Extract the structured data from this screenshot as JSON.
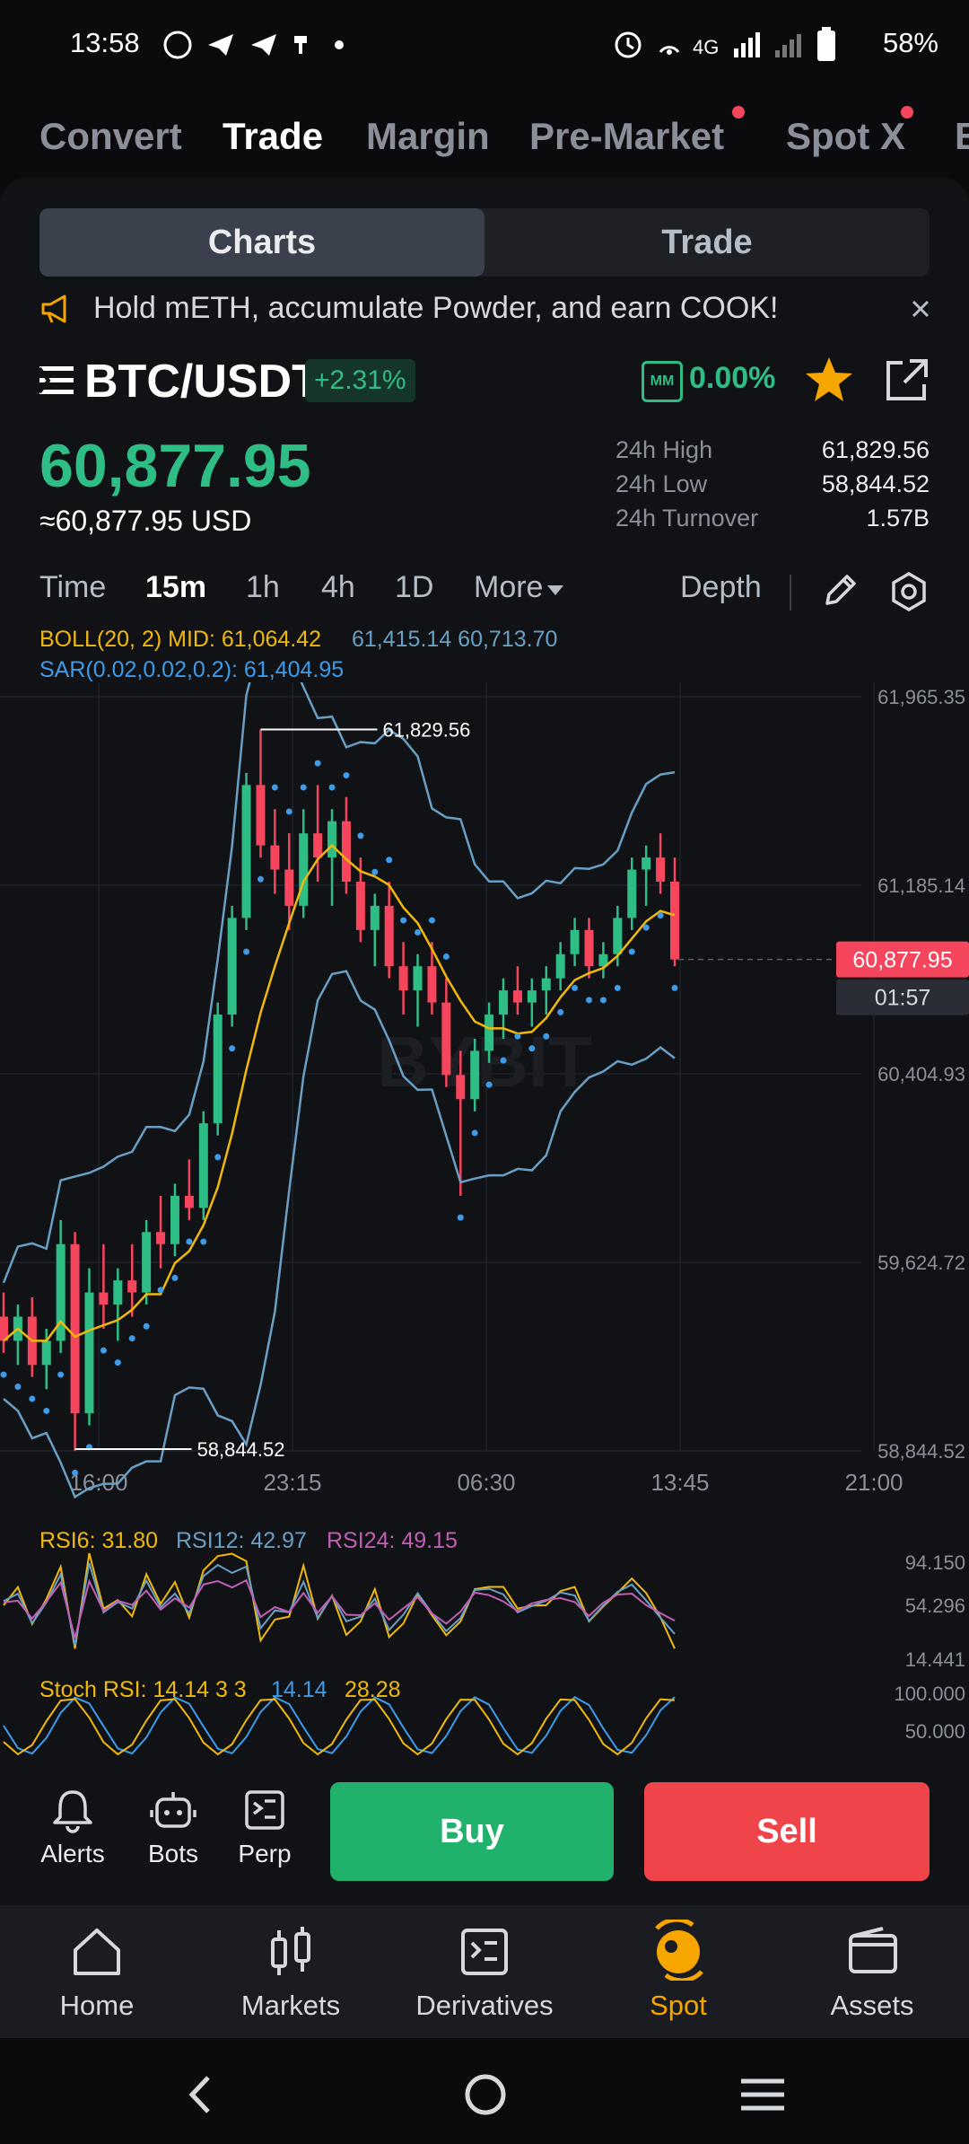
{
  "status_bar": {
    "time": "13:58",
    "network": "4G",
    "battery": "58%"
  },
  "top_tabs": [
    {
      "label": "Convert",
      "active": false
    },
    {
      "label": "Trade",
      "active": true
    },
    {
      "label": "Margin",
      "active": false
    },
    {
      "label": "Pre-Market",
      "active": false,
      "dot": true
    },
    {
      "label": "Spot X",
      "active": false,
      "dot": true
    },
    {
      "label": "B",
      "active": false
    }
  ],
  "segment": {
    "charts": "Charts",
    "trade": "Trade"
  },
  "promo": {
    "text": "Hold mETH, accumulate Powder, and earn COOK!"
  },
  "pair": {
    "symbol": "BTC/USDT",
    "change": "+2.31%",
    "mm_label": "MM",
    "mm_value": "0.00%"
  },
  "price": {
    "last": "60,877.95",
    "usd": "≈60,877.95 USD"
  },
  "stats": [
    {
      "label": "24h High",
      "value": "61,829.56"
    },
    {
      "label": "24h Low",
      "value": "58,844.52"
    },
    {
      "label": "24h Turnover",
      "value": "1.57B"
    }
  ],
  "timeframes": [
    {
      "label": "Time",
      "active": false
    },
    {
      "label": "15m",
      "active": true
    },
    {
      "label": "1h",
      "active": false
    },
    {
      "label": "4h",
      "active": false
    },
    {
      "label": "1D",
      "active": false
    },
    {
      "label": "More",
      "active": false
    }
  ],
  "depth_label": "Depth",
  "indicators": {
    "boll": "BOLL(20, 2) MID: 61,064.42",
    "boll_bands": "61,415.14 60,713.70",
    "sar": "SAR(0.02,0.02,0.2): 61,404.95",
    "rsi6": "RSI6: 31.80",
    "rsi12": "RSI12: 42.97",
    "rsi24": "RSI24: 49.15",
    "stoch_label": "Stoch RSI: 14.14 3 3",
    "stoch_k": "14.14",
    "stoch_d": "28.28"
  },
  "chart_data": {
    "type": "candlestick",
    "y_ticks": [
      "61,965.35",
      "61,185.14",
      "60,404.93",
      "59,624.72",
      "58,844.52"
    ],
    "x_ticks": [
      "16:00",
      "23:15",
      "06:30",
      "13:45",
      "21:00"
    ],
    "high_marker": "61,829.56",
    "low_marker": "58,844.52",
    "last_price_tag": "60,877.95",
    "countdown": "01:57",
    "watermark": "BYBIT",
    "rsi_ticks": [
      "94.150",
      "54.296",
      "14.441"
    ],
    "stoch_ticks": [
      "100.000",
      "50.000"
    ],
    "candles": [
      [
        59400,
        59500,
        59250,
        59300
      ],
      [
        59300,
        59450,
        59200,
        59400
      ],
      [
        59400,
        59480,
        59150,
        59200
      ],
      [
        59200,
        59350,
        59100,
        59300
      ],
      [
        59300,
        59800,
        59250,
        59700
      ],
      [
        59700,
        59750,
        58844,
        59000
      ],
      [
        59000,
        59600,
        58950,
        59500
      ],
      [
        59500,
        59700,
        59350,
        59450
      ],
      [
        59450,
        59600,
        59300,
        59550
      ],
      [
        59550,
        59700,
        59400,
        59500
      ],
      [
        59500,
        59800,
        59450,
        59750
      ],
      [
        59750,
        59900,
        59600,
        59700
      ],
      [
        59700,
        59950,
        59650,
        59900
      ],
      [
        59900,
        60050,
        59800,
        59850
      ],
      [
        59850,
        60250,
        59800,
        60200
      ],
      [
        60200,
        60700,
        60150,
        60650
      ],
      [
        60650,
        61100,
        60600,
        61050
      ],
      [
        61050,
        61650,
        61000,
        61600
      ],
      [
        61600,
        61829,
        61300,
        61350
      ],
      [
        61350,
        61500,
        61150,
        61250
      ],
      [
        61250,
        61400,
        61000,
        61100
      ],
      [
        61100,
        61500,
        61050,
        61400
      ],
      [
        61400,
        61600,
        61200,
        61300
      ],
      [
        61300,
        61500,
        61100,
        61450
      ],
      [
        61450,
        61550,
        61150,
        61200
      ],
      [
        61200,
        61300,
        60950,
        61000
      ],
      [
        61000,
        61150,
        60850,
        61100
      ],
      [
        61100,
        61200,
        60800,
        60850
      ],
      [
        60850,
        60950,
        60650,
        60750
      ],
      [
        60750,
        60900,
        60600,
        60850
      ],
      [
        60850,
        60950,
        60650,
        60700
      ],
      [
        60700,
        60800,
        60350,
        60400
      ],
      [
        60400,
        60500,
        59900,
        60300
      ],
      [
        60300,
        60550,
        60250,
        60500
      ],
      [
        60500,
        60700,
        60450,
        60650
      ],
      [
        60650,
        60800,
        60550,
        60750
      ],
      [
        60750,
        60850,
        60650,
        60700
      ],
      [
        60700,
        60800,
        60600,
        60750
      ],
      [
        60750,
        60850,
        60650,
        60800
      ],
      [
        60800,
        60950,
        60750,
        60900
      ],
      [
        60900,
        61050,
        60850,
        61000
      ],
      [
        61000,
        61050,
        60800,
        60850
      ],
      [
        60850,
        60950,
        60800,
        60900
      ],
      [
        60900,
        61100,
        60850,
        61050
      ],
      [
        61050,
        61300,
        61000,
        61250
      ],
      [
        61250,
        61350,
        61100,
        61300
      ],
      [
        61300,
        61400,
        61150,
        61200
      ],
      [
        61200,
        61300,
        60850,
        60878
      ]
    ]
  },
  "left_actions": [
    {
      "label": "Alerts",
      "icon": "bell-icon"
    },
    {
      "label": "Bots",
      "icon": "robot-icon"
    },
    {
      "label": "Perp",
      "icon": "perp-icon"
    }
  ],
  "buy_label": "Buy",
  "sell_label": "Sell",
  "bottom_nav": [
    {
      "label": "Home",
      "icon": "home-icon",
      "active": false
    },
    {
      "label": "Markets",
      "icon": "markets-icon",
      "active": false
    },
    {
      "label": "Derivatives",
      "icon": "derivatives-icon",
      "active": false
    },
    {
      "label": "Spot",
      "icon": "spot-icon",
      "active": true
    },
    {
      "label": "Assets",
      "icon": "wallet-icon",
      "active": false
    }
  ],
  "colors": {
    "up": "#2ebd85",
    "down": "#f6465d",
    "accent": "#f7a600",
    "boll_mid": "#f0b90b",
    "boll_band": "#6a9fc4",
    "sar": "#3d9be9"
  }
}
